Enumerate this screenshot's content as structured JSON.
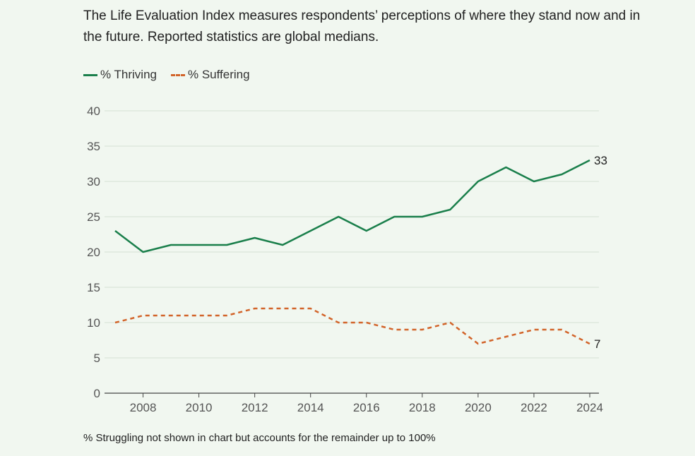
{
  "description": "The Life Evaluation Index measures respondents’ perceptions of where they stand now and in the future. Reported statistics are global medians.",
  "footnote": "% Struggling not shown in chart but accounts for the remainder up to 100%",
  "chart_data": {
    "type": "line",
    "title": "",
    "xlabel": "",
    "ylabel": "",
    "ylim": [
      0,
      40
    ],
    "yticks": [
      0,
      5,
      10,
      15,
      20,
      25,
      30,
      35,
      40
    ],
    "xticks": [
      2008,
      2010,
      2012,
      2014,
      2016,
      2018,
      2020,
      2022,
      2024
    ],
    "grid": "horizontal",
    "legend_placement": "top-left",
    "x": [
      2007,
      2008,
      2009,
      2010,
      2011,
      2012,
      2013,
      2014,
      2015,
      2016,
      2017,
      2018,
      2019,
      2020,
      2021,
      2022,
      2023,
      2024
    ],
    "series": [
      {
        "name": "% Thriving",
        "color": "#1a7f4b",
        "style": "solid",
        "end_label": "33",
        "values": [
          23,
          20,
          21,
          21,
          21,
          22,
          21,
          23,
          25,
          23,
          25,
          25,
          26,
          30,
          32,
          30,
          31,
          33
        ]
      },
      {
        "name": "% Suffering",
        "color": "#d2642a",
        "style": "dashed",
        "end_label": "7",
        "values": [
          10,
          11,
          11,
          11,
          11,
          12,
          12,
          12,
          10,
          10,
          9,
          9,
          10,
          7,
          8,
          9,
          9,
          7
        ]
      }
    ]
  }
}
